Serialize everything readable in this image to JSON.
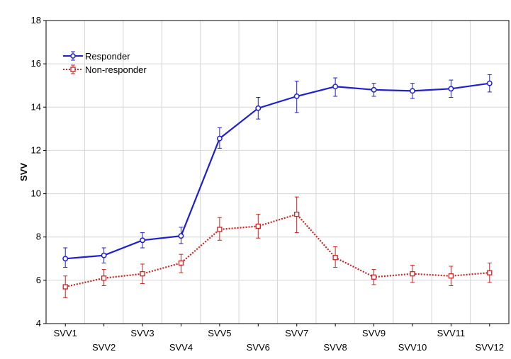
{
  "chart_data": {
    "type": "line",
    "title": "",
    "xlabel": "",
    "ylabel": "SVV",
    "categories": [
      "SVV1",
      "SVV2",
      "SVV3",
      "SVV4",
      "SVV5",
      "SVV6",
      "SVV7",
      "SVV8",
      "SVV9",
      "SVV10",
      "SVV11",
      "SVV12"
    ],
    "ylim": [
      4,
      18
    ],
    "yticks": [
      4,
      6,
      8,
      10,
      12,
      14,
      16,
      18
    ],
    "grid": true,
    "legend_position": "top-left",
    "series": [
      {
        "name": "Responder",
        "color": "#1f1fd0",
        "line_style": "solid",
        "marker": "circle",
        "values": [
          7.0,
          7.15,
          7.85,
          8.05,
          12.55,
          13.95,
          14.5,
          14.95,
          14.8,
          14.75,
          14.85,
          15.1
        ],
        "error_upper": [
          7.5,
          7.5,
          8.2,
          8.45,
          13.05,
          14.45,
          15.2,
          15.35,
          15.1,
          15.1,
          15.25,
          15.5
        ],
        "error_lower": [
          6.6,
          6.8,
          7.5,
          7.7,
          12.1,
          13.45,
          13.75,
          14.5,
          14.5,
          14.4,
          14.45,
          14.7
        ]
      },
      {
        "name": "Non-responder",
        "color": "#d02020",
        "line_style": "dotted",
        "marker": "square",
        "values": [
          5.7,
          6.1,
          6.3,
          6.8,
          8.35,
          8.5,
          9.05,
          7.05,
          6.15,
          6.3,
          6.2,
          6.35
        ],
        "error_upper": [
          6.2,
          6.5,
          6.75,
          7.2,
          8.9,
          9.05,
          9.85,
          7.55,
          6.5,
          6.7,
          6.65,
          6.8
        ],
        "error_lower": [
          5.2,
          5.75,
          5.85,
          6.35,
          7.85,
          7.95,
          8.2,
          6.6,
          5.8,
          5.9,
          5.75,
          5.9
        ]
      }
    ]
  }
}
